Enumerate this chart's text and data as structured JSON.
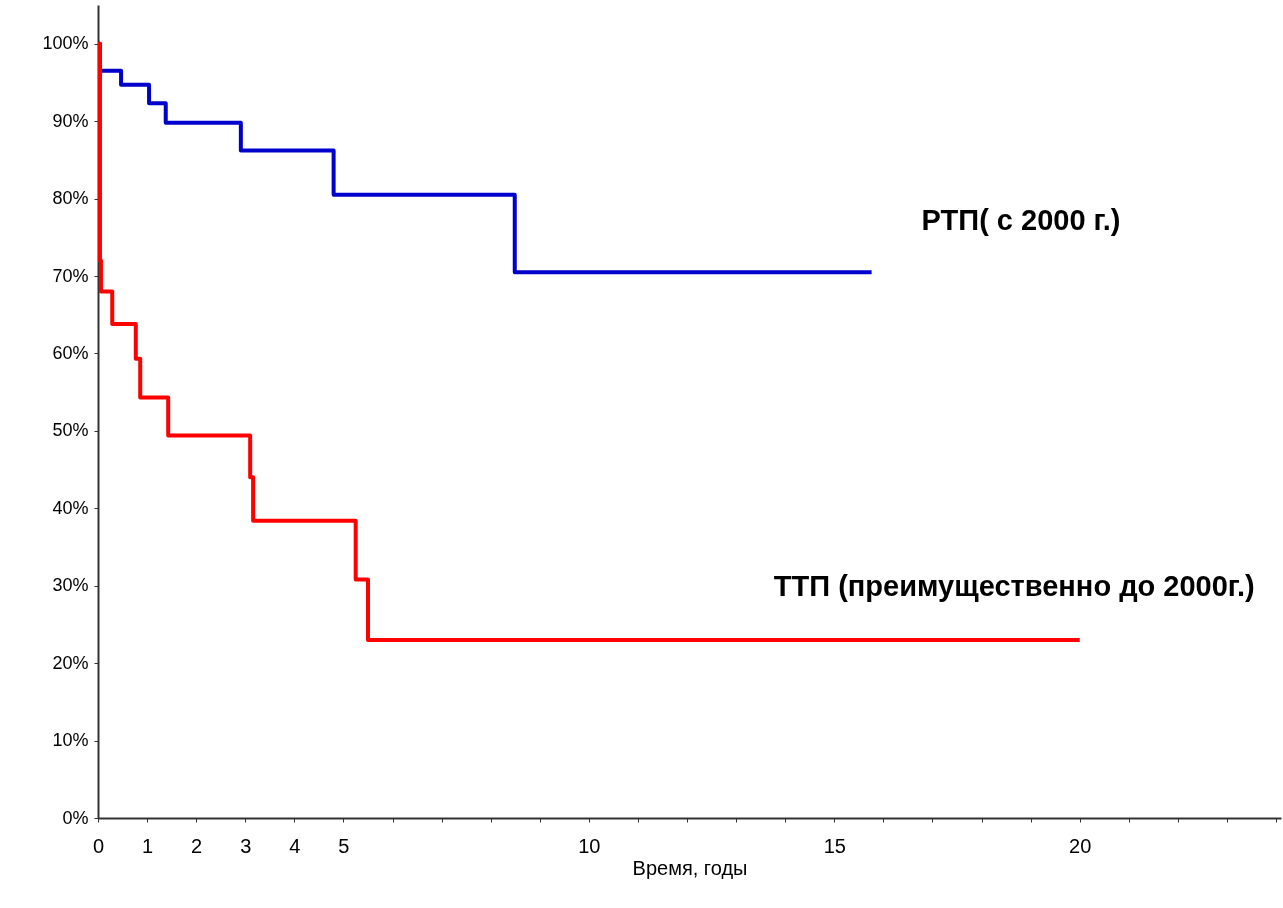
{
  "chart_data": {
    "type": "step",
    "xlabel": "Время, годы",
    "xlim": [
      0,
      24.1
    ],
    "ylim": [
      0,
      105
    ],
    "xticks": [
      0,
      1,
      2,
      3,
      4,
      5,
      {
        "value": 6,
        "label": null
      },
      {
        "value": 7,
        "label": null
      },
      {
        "value": 8,
        "label": null
      },
      {
        "value": 9,
        "label": null
      },
      10,
      {
        "value": 11,
        "label": null
      },
      {
        "value": 12,
        "label": null
      },
      {
        "value": 13,
        "label": null
      },
      {
        "value": 14,
        "label": null
      },
      15,
      {
        "value": 16,
        "label": null
      },
      {
        "value": 17,
        "label": null
      },
      {
        "value": 18,
        "label": null
      },
      {
        "value": 19,
        "label": null
      },
      20,
      {
        "value": 21,
        "label": null
      },
      {
        "value": 22,
        "label": null
      },
      {
        "value": 23,
        "label": null
      },
      {
        "value": 24,
        "label": null
      }
    ],
    "yticks": [
      {
        "value": 0,
        "label": "0%"
      },
      {
        "value": 10,
        "label": "10%"
      },
      {
        "value": 20,
        "label": "20%"
      },
      {
        "value": 30,
        "label": "30%"
      },
      {
        "value": 40,
        "label": "40%"
      },
      {
        "value": 50,
        "label": "50%"
      },
      {
        "value": 60,
        "label": "60%"
      },
      {
        "value": 70,
        "label": "70%"
      },
      {
        "value": 80,
        "label": "80%"
      },
      {
        "value": 90,
        "label": "90%"
      },
      {
        "value": 100,
        "label": "100%"
      }
    ],
    "grid": false,
    "marker": "none",
    "line_style": "solid",
    "series": [
      {
        "name": "РТП( с 2000 г.)",
        "color": "#0000cc",
        "x": [
          0,
          0.04,
          0.47,
          1.04,
          1.38,
          2.91,
          4.8,
          8.49,
          15.76
        ],
        "values": [
          100,
          96.5,
          94.7,
          92.3,
          89.8,
          86.2,
          80.5,
          70.5,
          70.5
        ]
      },
      {
        "name": "ТТП (преимущественно до 2000г.)",
        "color": "#ff0000",
        "x": [
          0,
          0.04,
          0.06,
          0.29,
          0.77,
          0.86,
          1.43,
          3.1,
          3.16,
          5.25,
          5.5,
          20
        ],
        "values": [
          100,
          72,
          68,
          63.8,
          59.3,
          54.3,
          49.4,
          44,
          38.4,
          30.8,
          23,
          23
        ]
      }
    ]
  }
}
